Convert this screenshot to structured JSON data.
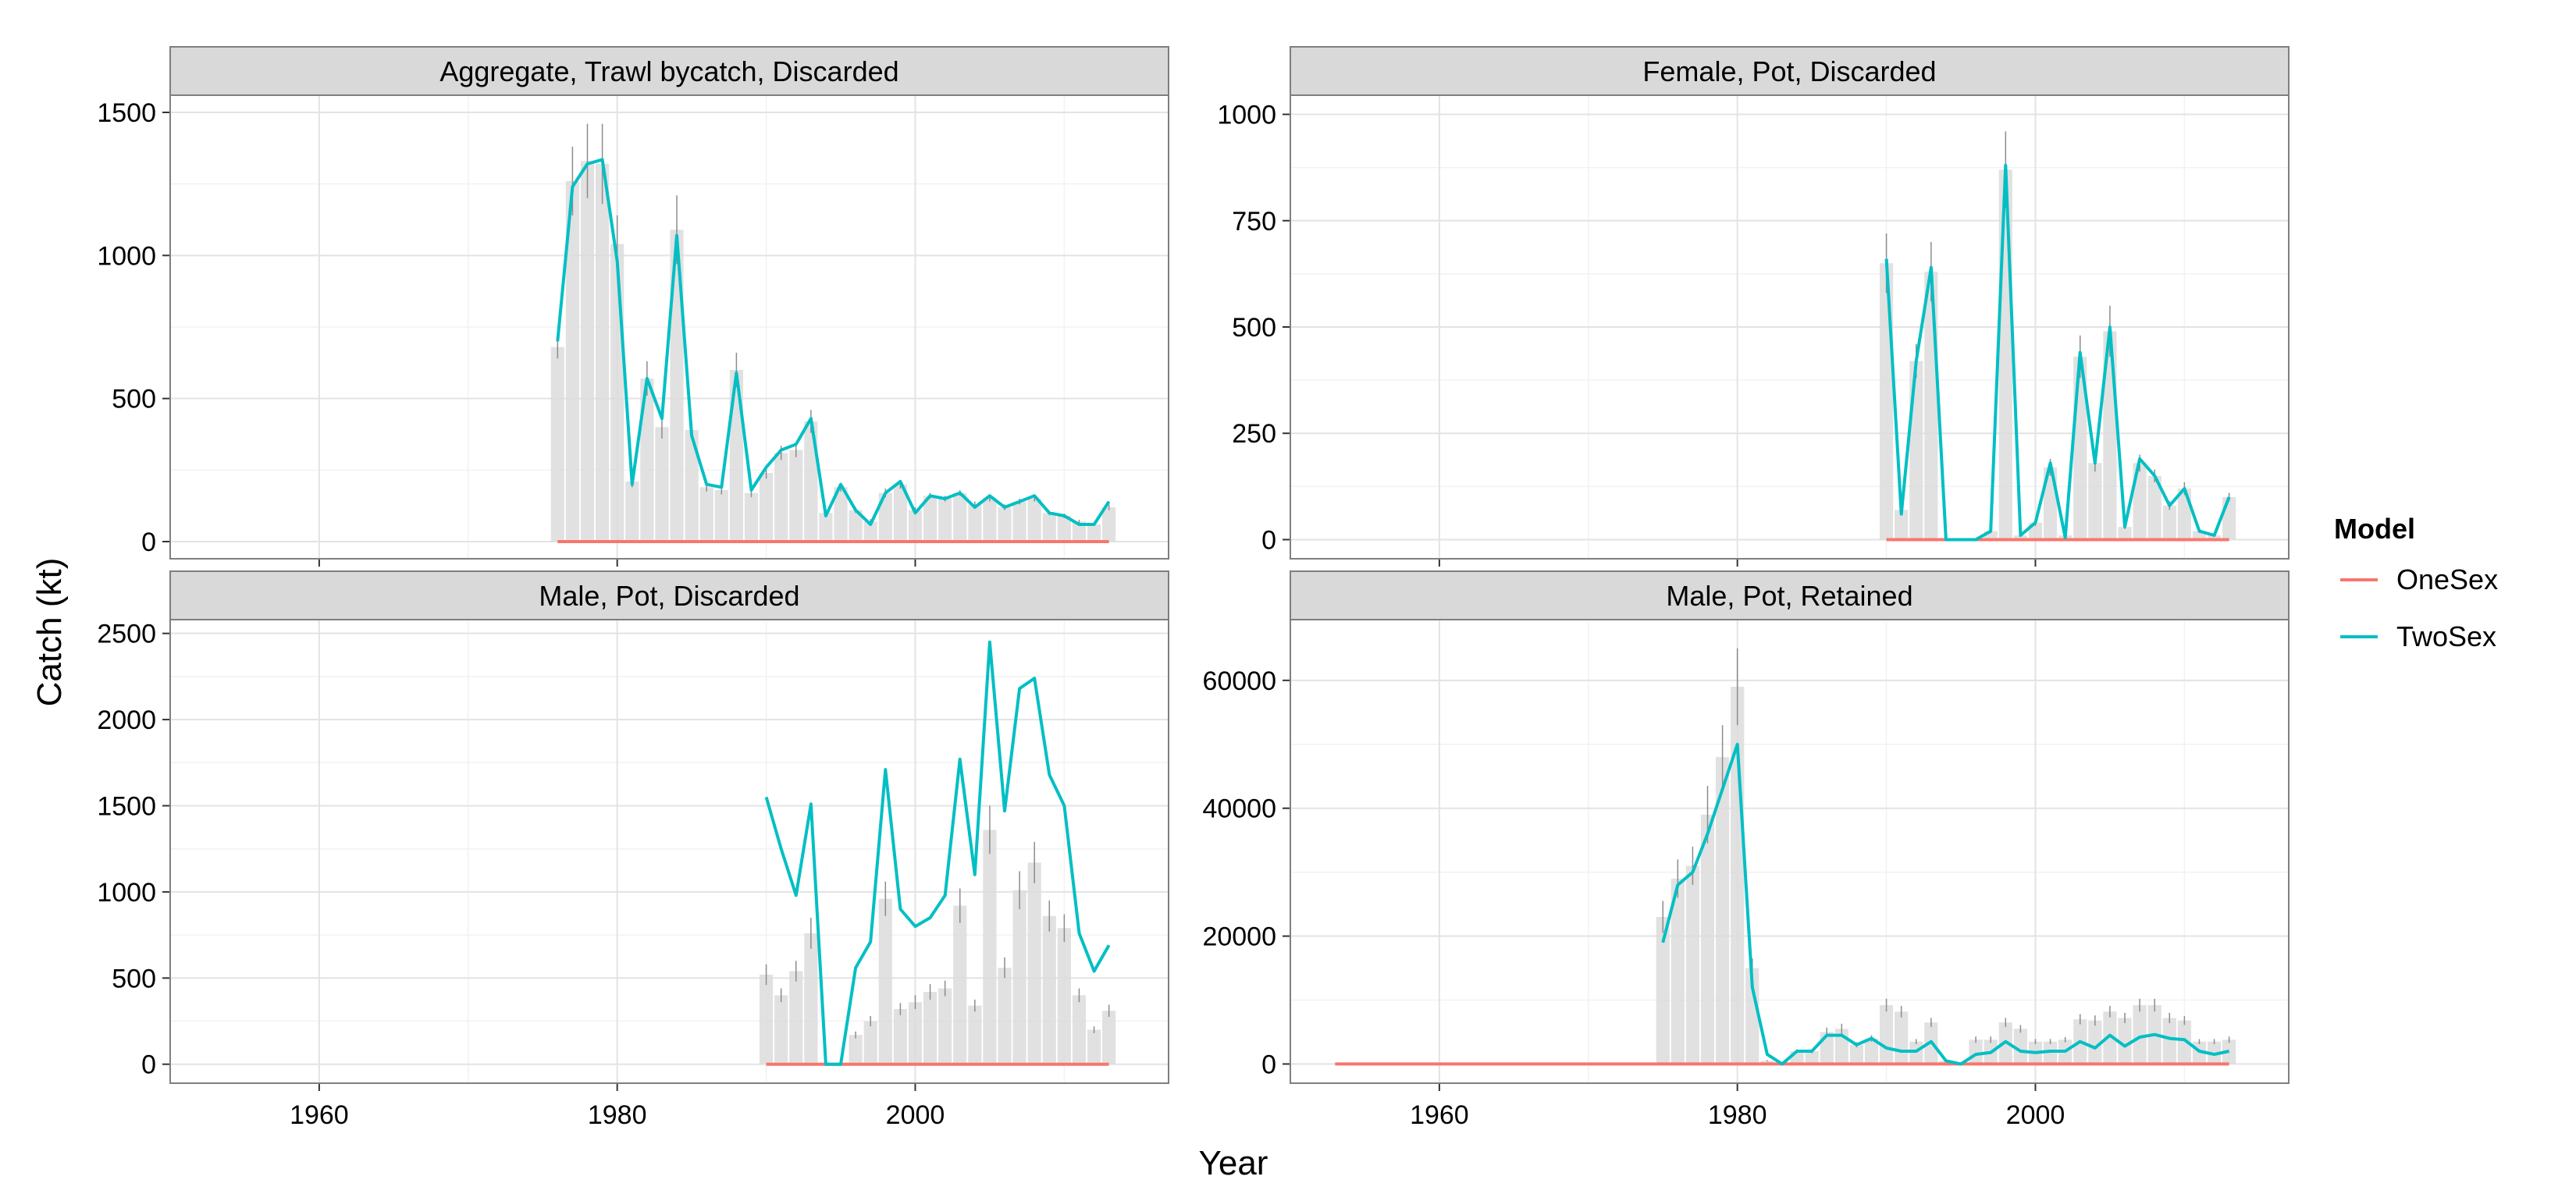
{
  "axes": {
    "x_title": "Year",
    "y_title": "Catch (kt)"
  },
  "legend": {
    "title": "Model",
    "entries": [
      {
        "label": "OneSex",
        "color": "#f8766d"
      },
      {
        "label": "TwoSex",
        "color": "#00bfc4"
      }
    ]
  },
  "chart_data": [
    {
      "type": "bar",
      "title": "Aggregate, Trawl bycatch, Discarded",
      "xlim": [
        1950,
        2017
      ],
      "ylim": [
        -60,
        1560
      ],
      "x_ticks": [
        1960,
        1980,
        2000
      ],
      "y_ticks": [
        0,
        500,
        1000,
        1500
      ],
      "bars": {
        "x": [
          1976,
          1977,
          1978,
          1979,
          1980,
          1981,
          1982,
          1983,
          1984,
          1985,
          1986,
          1987,
          1988,
          1989,
          1990,
          1991,
          1992,
          1993,
          1994,
          1995,
          1996,
          1997,
          1998,
          1999,
          2000,
          2001,
          2002,
          2003,
          2004,
          2005,
          2006,
          2007,
          2008,
          2009,
          2010,
          2011,
          2012,
          2013
        ],
        "values": [
          680,
          1260,
          1330,
          1320,
          1040,
          210,
          570,
          400,
          1090,
          390,
          190,
          180,
          600,
          170,
          240,
          310,
          320,
          420,
          100,
          190,
          110,
          70,
          170,
          200,
          110,
          160,
          150,
          170,
          130,
          150,
          120,
          140,
          150,
          100,
          90,
          70,
          60,
          120
        ],
        "err": [
          40,
          120,
          130,
          140,
          100,
          20,
          60,
          40,
          120,
          30,
          15,
          15,
          60,
          15,
          20,
          25,
          25,
          40,
          10,
          15,
          10,
          8,
          15,
          15,
          10,
          10,
          10,
          10,
          10,
          10,
          10,
          10,
          10,
          8,
          8,
          6,
          5,
          10
        ]
      },
      "series": [
        {
          "name": "OneSex",
          "x": [
            1976,
            2013
          ],
          "values": [
            0,
            0
          ]
        },
        {
          "name": "TwoSex",
          "x": [
            1976,
            1977,
            1978,
            1979,
            1980,
            1981,
            1982,
            1983,
            1984,
            1985,
            1986,
            1987,
            1988,
            1989,
            1990,
            1991,
            1992,
            1993,
            1994,
            1995,
            1996,
            1997,
            1998,
            1999,
            2000,
            2001,
            2002,
            2003,
            2004,
            2005,
            2006,
            2007,
            2008,
            2009,
            2010,
            2011,
            2012,
            2013
          ],
          "values": [
            700,
            1240,
            1320,
            1335,
            980,
            200,
            570,
            430,
            1070,
            370,
            200,
            190,
            590,
            180,
            260,
            320,
            340,
            430,
            90,
            200,
            110,
            60,
            170,
            210,
            100,
            160,
            150,
            170,
            120,
            160,
            120,
            140,
            160,
            100,
            90,
            60,
            60,
            140
          ]
        }
      ]
    },
    {
      "type": "bar",
      "title": "Female, Pot, Discarded",
      "xlim": [
        1950,
        2017
      ],
      "ylim": [
        -45,
        1045
      ],
      "x_ticks": [
        1960,
        1980,
        2000
      ],
      "y_ticks": [
        0,
        250,
        500,
        750,
        1000
      ],
      "bars": {
        "x": [
          1990,
          1991,
          1992,
          1993,
          1994,
          1995,
          1996,
          1997,
          1998,
          1999,
          2000,
          2001,
          2002,
          2003,
          2004,
          2005,
          2006,
          2007,
          2008,
          2009,
          2010,
          2011,
          2012,
          2013
        ],
        "values": [
          650,
          70,
          420,
          630,
          0,
          0,
          0,
          20,
          870,
          10,
          40,
          170,
          10,
          430,
          180,
          490,
          30,
          180,
          150,
          80,
          120,
          20,
          10,
          100
        ],
        "err": [
          70,
          10,
          40,
          70,
          0,
          0,
          0,
          5,
          90,
          3,
          8,
          20,
          3,
          50,
          20,
          60,
          5,
          20,
          15,
          10,
          15,
          4,
          3,
          10
        ]
      },
      "series": [
        {
          "name": "OneSex",
          "x": [
            1990,
            2013
          ],
          "values": [
            0,
            0
          ]
        },
        {
          "name": "TwoSex",
          "x": [
            1990,
            1991,
            1992,
            1993,
            1994,
            1995,
            1996,
            1997,
            1998,
            1999,
            2000,
            2001,
            2002,
            2003,
            2004,
            2005,
            2006,
            2007,
            2008,
            2009,
            2010,
            2011,
            2012,
            2013
          ],
          "values": [
            660,
            60,
            420,
            640,
            0,
            0,
            0,
            20,
            880,
            10,
            40,
            180,
            5,
            440,
            180,
            500,
            30,
            190,
            150,
            80,
            120,
            20,
            10,
            100
          ]
        }
      ]
    },
    {
      "type": "bar",
      "title": "Male, Pot, Discarded",
      "xlim": [
        1950,
        2017
      ],
      "ylim": [
        -110,
        2580
      ],
      "x_ticks": [
        1960,
        1980,
        2000
      ],
      "y_ticks": [
        0,
        500,
        1000,
        1500,
        2000,
        2500
      ],
      "bars": {
        "x": [
          1990,
          1991,
          1992,
          1993,
          1994,
          1995,
          1996,
          1997,
          1998,
          1999,
          2000,
          2001,
          2002,
          2003,
          2004,
          2005,
          2006,
          2007,
          2008,
          2009,
          2010,
          2011,
          2012,
          2013
        ],
        "values": [
          520,
          400,
          540,
          760,
          0,
          0,
          170,
          250,
          960,
          320,
          360,
          420,
          440,
          920,
          340,
          1360,
          560,
          1010,
          1170,
          860,
          790,
          400,
          200,
          310
        ],
        "err": [
          60,
          40,
          60,
          90,
          0,
          0,
          20,
          30,
          100,
          35,
          40,
          45,
          45,
          100,
          35,
          140,
          60,
          110,
          120,
          90,
          80,
          40,
          20,
          35
        ]
      },
      "series": [
        {
          "name": "OneSex",
          "x": [
            1990,
            2013
          ],
          "values": [
            0,
            0
          ]
        },
        {
          "name": "TwoSex",
          "x": [
            1990,
            1991,
            1992,
            1993,
            1994,
            1995,
            1996,
            1997,
            1998,
            1999,
            2000,
            2001,
            2002,
            2003,
            2004,
            2005,
            2006,
            2007,
            2008,
            2009,
            2010,
            2011,
            2012,
            2013
          ],
          "values": [
            1550,
            1250,
            980,
            1510,
            0,
            0,
            560,
            710,
            1710,
            900,
            800,
            850,
            980,
            1770,
            1100,
            2450,
            1470,
            2180,
            2240,
            1680,
            1500,
            760,
            540,
            690
          ]
        }
      ]
    },
    {
      "type": "bar",
      "title": "Male, Pot, Retained",
      "xlim": [
        1950,
        2017
      ],
      "ylim": [
        -3000,
        69500
      ],
      "x_ticks": [
        1960,
        1980,
        2000
      ],
      "y_ticks": [
        0,
        20000,
        40000,
        60000
      ],
      "bars": {
        "x": [
          1975,
          1976,
          1977,
          1978,
          1979,
          1980,
          1981,
          1982,
          1983,
          1984,
          1985,
          1986,
          1987,
          1988,
          1989,
          1990,
          1991,
          1992,
          1993,
          1994,
          1995,
          1996,
          1997,
          1998,
          1999,
          2000,
          2001,
          2002,
          2003,
          2004,
          2005,
          2006,
          2007,
          2008,
          2009,
          2010,
          2011,
          2012,
          2013
        ],
        "values": [
          23000,
          29000,
          31000,
          39000,
          48000,
          59000,
          15000,
          500,
          0,
          2000,
          2000,
          5000,
          5500,
          3000,
          4000,
          9200,
          8200,
          3500,
          6500,
          500,
          0,
          3800,
          3800,
          6500,
          5500,
          3500,
          3500,
          3800,
          7000,
          6800,
          8200,
          7200,
          9200,
          9200,
          7200,
          6800,
          3500,
          3500,
          3800
        ],
        "err": [
          2500,
          3000,
          3000,
          4500,
          5000,
          6000,
          1500,
          100,
          0,
          300,
          300,
          700,
          800,
          400,
          500,
          1000,
          900,
          400,
          700,
          100,
          0,
          500,
          500,
          700,
          600,
          400,
          400,
          400,
          800,
          800,
          900,
          800,
          1000,
          1000,
          800,
          700,
          400,
          400,
          500
        ]
      },
      "series": [
        {
          "name": "OneSex",
          "x": [
            1953,
            2013
          ],
          "values": [
            0,
            0
          ]
        },
        {
          "name": "TwoSex",
          "x": [
            1975,
            1976,
            1977,
            1978,
            1979,
            1980,
            1981,
            1982,
            1983,
            1984,
            1985,
            1986,
            1987,
            1988,
            1989,
            1990,
            1991,
            1992,
            1993,
            1994,
            1995,
            1996,
            1997,
            1998,
            1999,
            2000,
            2001,
            2002,
            2003,
            2004,
            2005,
            2006,
            2007,
            2008,
            2009,
            2010,
            2011,
            2012,
            2013
          ],
          "values": [
            19000,
            28000,
            30000,
            36000,
            43000,
            50000,
            12000,
            1500,
            0,
            2000,
            2000,
            4500,
            4500,
            3000,
            4000,
            2500,
            2000,
            2000,
            3500,
            500,
            0,
            1500,
            1800,
            3500,
            2000,
            1800,
            2000,
            2000,
            3500,
            2500,
            4500,
            2800,
            4200,
            4600,
            4000,
            3800,
            2000,
            1500,
            2000
          ]
        }
      ]
    }
  ]
}
